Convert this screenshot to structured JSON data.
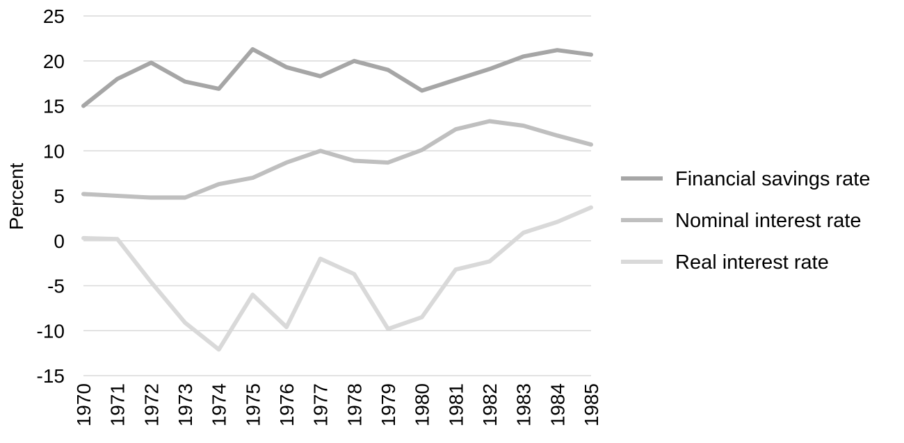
{
  "chart_data": {
    "type": "line",
    "title": "",
    "xlabel": "",
    "ylabel": "Percent",
    "ylim": [
      -15,
      25
    ],
    "yticks": [
      -15,
      -10,
      -5,
      0,
      5,
      10,
      15,
      20,
      25
    ],
    "x": [
      "1970",
      "1971",
      "1972",
      "1973",
      "1974",
      "1975",
      "1976",
      "1977",
      "1978",
      "1979",
      "1980",
      "1981",
      "1982",
      "1983",
      "1984",
      "1985"
    ],
    "grid": true,
    "legend_position": "right",
    "series": [
      {
        "name": "Financial savings rate",
        "color": "#a6a6a6",
        "values": [
          15.0,
          18.0,
          19.8,
          17.7,
          16.9,
          21.3,
          19.3,
          18.3,
          20.0,
          19.0,
          16.7,
          17.9,
          19.1,
          20.5,
          21.2,
          20.7
        ]
      },
      {
        "name": "Nominal interest rate",
        "color": "#bfbfbf",
        "values": [
          5.2,
          5.0,
          4.8,
          4.8,
          6.3,
          7.0,
          8.7,
          10.0,
          8.9,
          8.7,
          10.1,
          12.4,
          13.3,
          12.8,
          11.7,
          10.7
        ]
      },
      {
        "name": "Real interest rate",
        "color": "#d9d9d9",
        "values": [
          0.3,
          0.2,
          -4.6,
          -9.1,
          -12.1,
          -6.0,
          -9.6,
          -2.0,
          -3.7,
          -9.8,
          -8.5,
          -3.2,
          -2.3,
          0.9,
          2.1,
          3.7
        ]
      }
    ]
  }
}
